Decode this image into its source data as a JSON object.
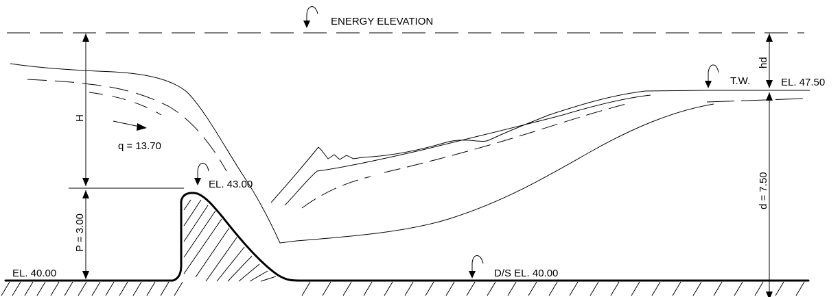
{
  "labels": {
    "energy_elevation": "ENERGY ELEVATION",
    "head_h": "H",
    "discharge": "q = 13.70",
    "crest_elevation": "EL. 43.00",
    "crest_height": "P = 3.00",
    "upstream_floor": "EL. 40.00",
    "downstream_floor": "D/S EL. 40.00",
    "tailwater": "T.W.",
    "tailwater_elevation": "EL. 47.50",
    "head_loss": "hd",
    "tailwater_depth": "d = 7.50"
  }
}
